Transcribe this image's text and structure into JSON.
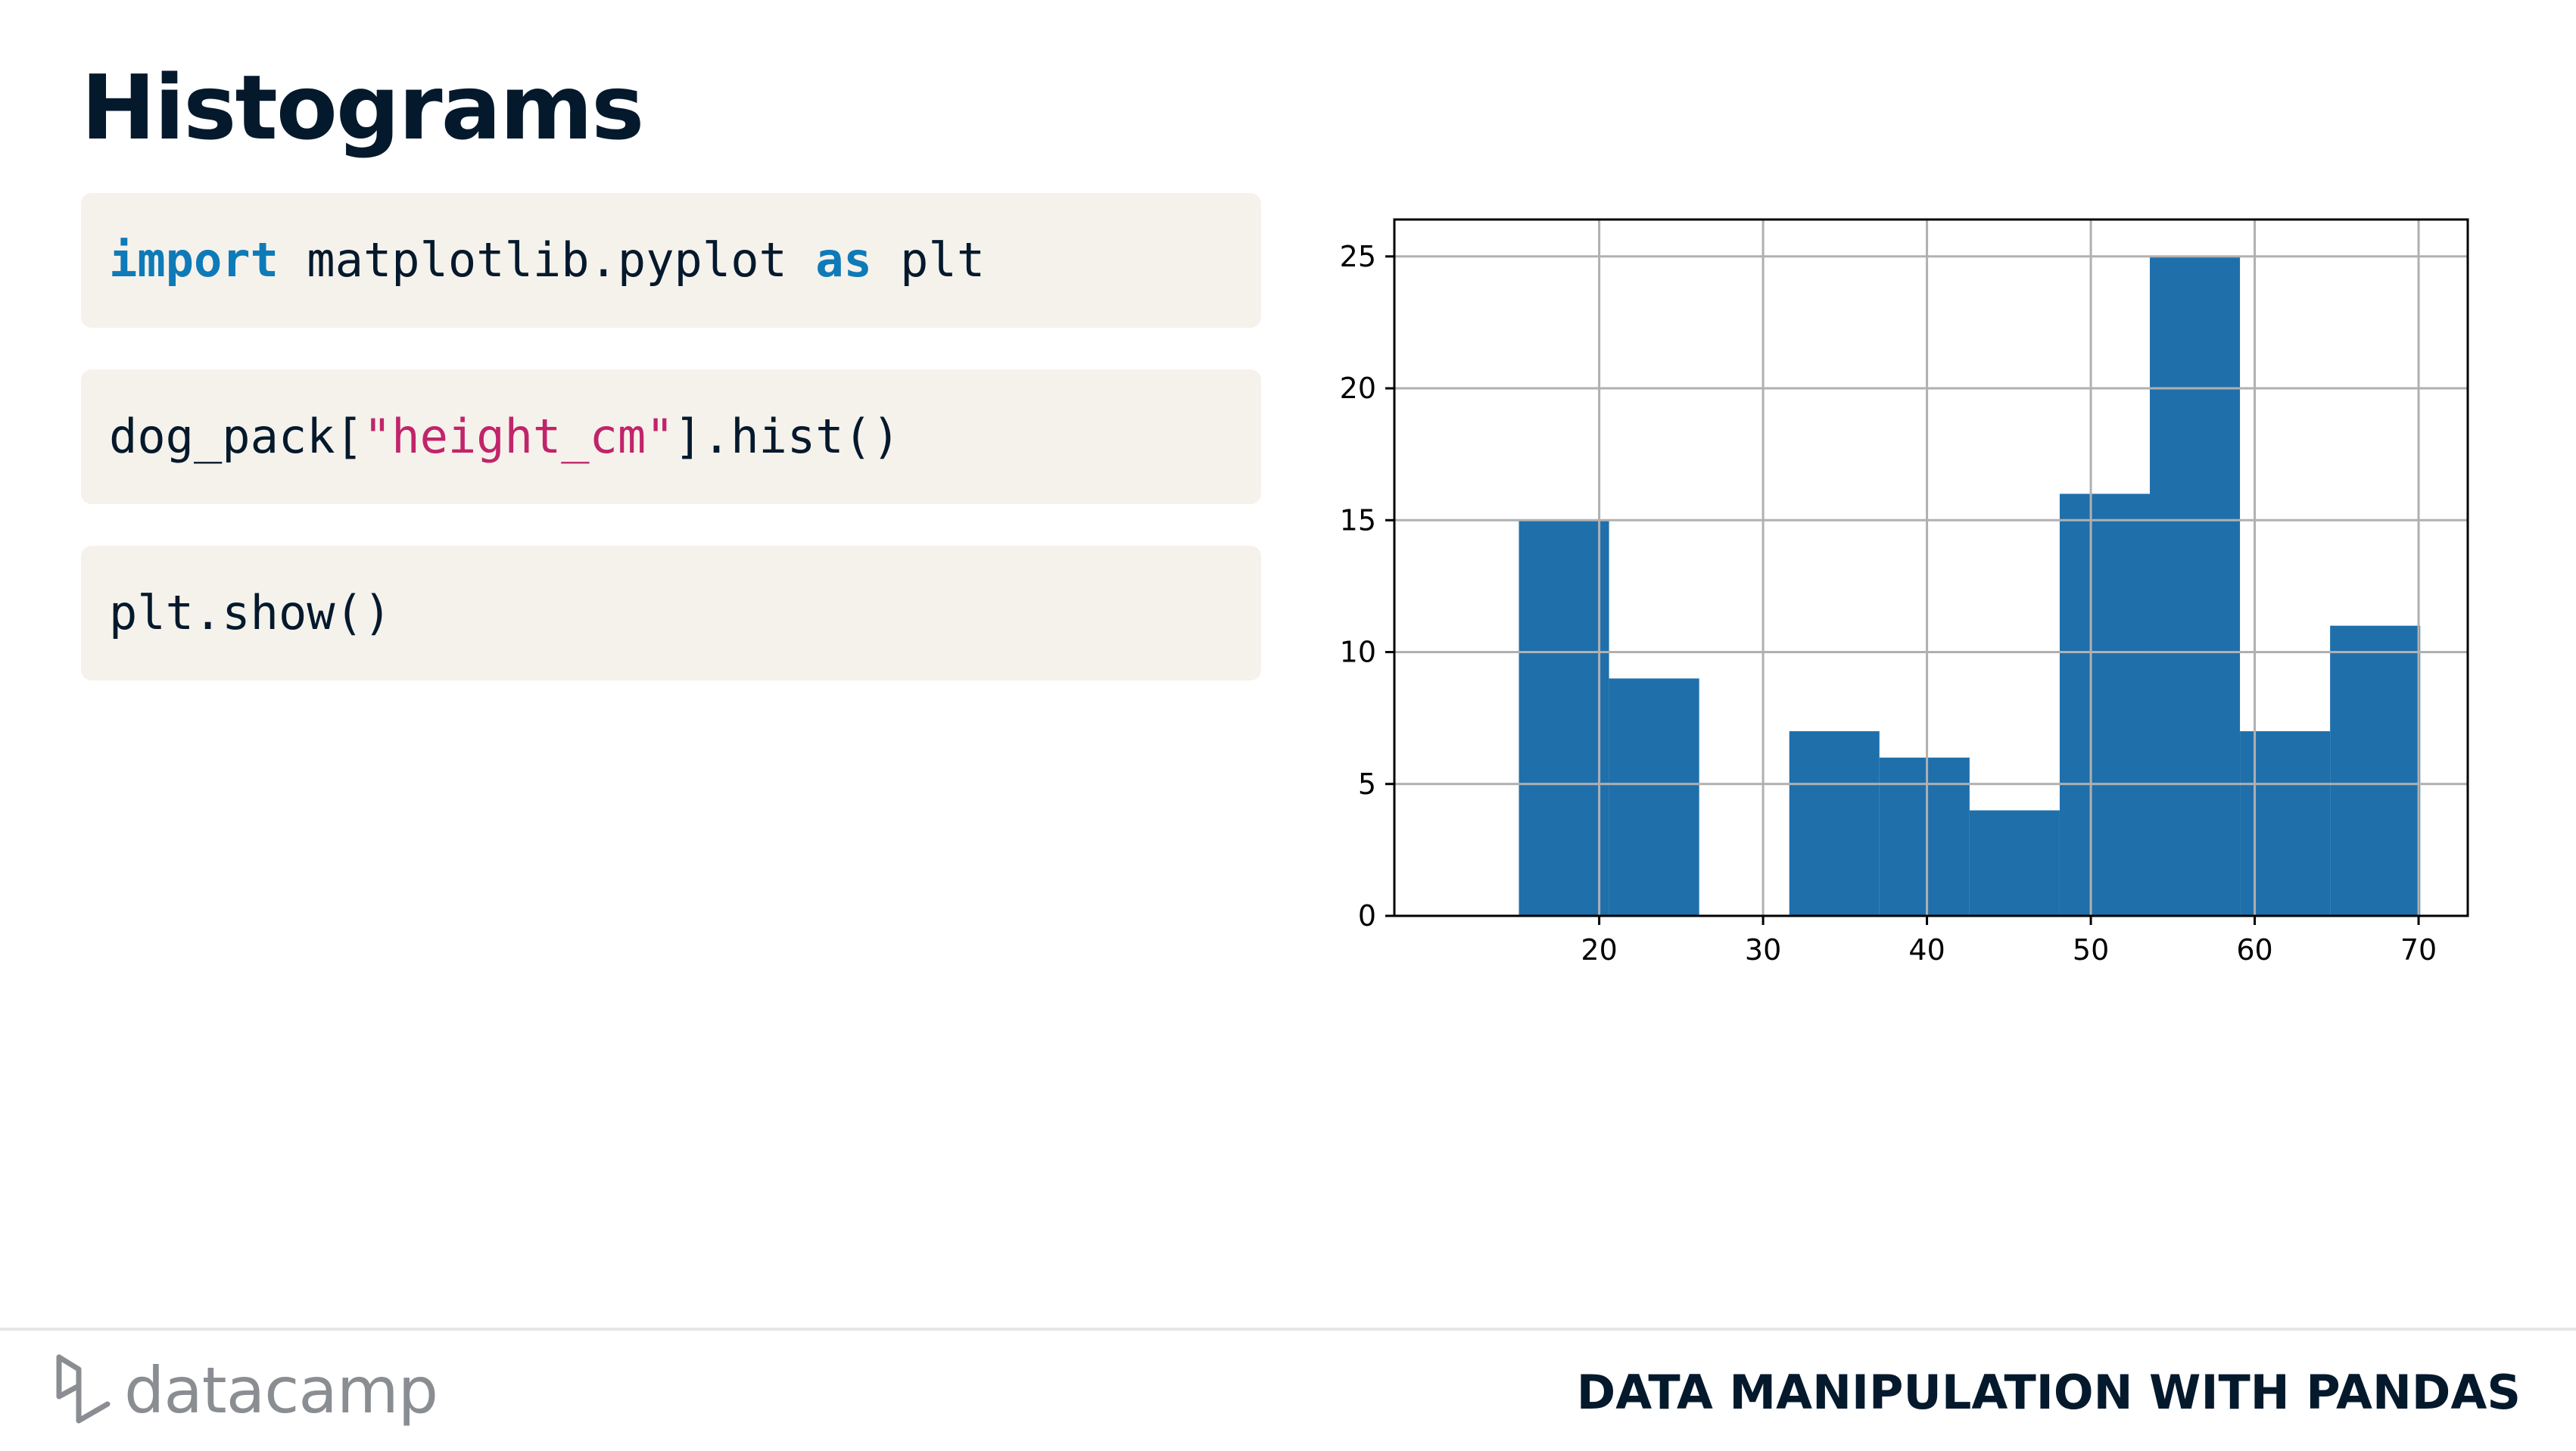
{
  "slide": {
    "title": "Histograms",
    "course_name": "DATA MANIPULATION WITH PANDAS",
    "brand": {
      "logo_text": "datacamp",
      "logo_icon": "datacamp-logo-icon",
      "logo_color": "#8a8d91"
    }
  },
  "code": {
    "line1": {
      "kw1": "import",
      "mid": " matplotlib.pyplot ",
      "kw2": "as",
      "tail": " plt"
    },
    "line2": {
      "pre": "dog_pack[",
      "str": "\"height_cm\"",
      "post": "].hist()"
    },
    "line3": {
      "text": "plt.show()"
    },
    "colors": {
      "keyword": "#0f7ab8",
      "string": "#c1246b",
      "text": "#05192d",
      "block_bg": "#f5f2eb"
    }
  },
  "chart_data": {
    "type": "bar",
    "bin_edges": [
      15.1,
      20.6,
      26.1,
      31.6,
      37.1,
      42.6,
      48.1,
      53.6,
      59.1,
      64.6,
      70.1
    ],
    "values": [
      15,
      9,
      0,
      7,
      6,
      4,
      16,
      25,
      7,
      11
    ],
    "xlim": [
      7.5,
      73
    ],
    "ylim": [
      0,
      26.4
    ],
    "x_ticks": [
      20,
      30,
      40,
      50,
      60,
      70
    ],
    "y_ticks": [
      0,
      5,
      10,
      15,
      20,
      25
    ],
    "grid": true,
    "bar_color": "#1f6fab",
    "title": "",
    "xlabel": "",
    "ylabel": ""
  }
}
